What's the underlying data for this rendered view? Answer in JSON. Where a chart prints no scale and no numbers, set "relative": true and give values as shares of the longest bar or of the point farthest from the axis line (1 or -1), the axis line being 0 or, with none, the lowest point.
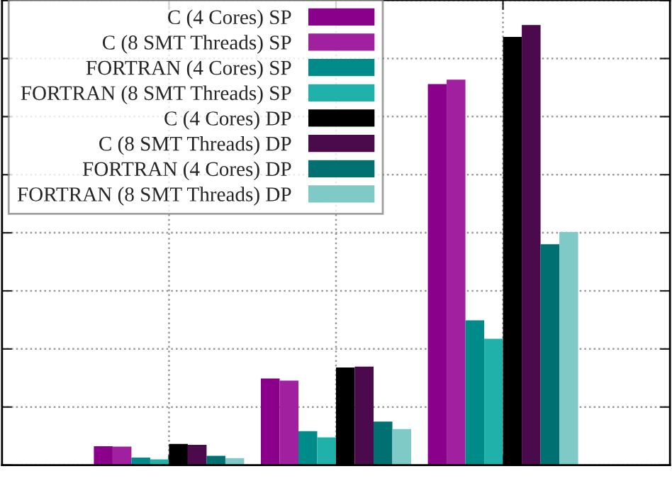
{
  "chart_data": {
    "type": "bar",
    "relative": true,
    "categories": [
      null,
      null,
      null
    ],
    "grid": true,
    "legend": "top left",
    "series": [
      {
        "name": "C (4 Cores) SP",
        "color": "#8b008b",
        "values": [
          0.043,
          0.197,
          0.866
        ]
      },
      {
        "name": "C (8 SMT Threads) SP",
        "color": "#a020a0",
        "values": [
          0.042,
          0.192,
          0.876
        ]
      },
      {
        "name": "FORTRAN (4 Cores) SP",
        "color": "#008b8b",
        "values": [
          0.017,
          0.077,
          0.329
        ]
      },
      {
        "name": "FORTRAN (8 SMT Threads) SP",
        "color": "#20b2aa",
        "values": [
          0.013,
          0.063,
          0.287
        ]
      },
      {
        "name": "C (4 Cores) DP",
        "color": "#000000",
        "values": [
          0.048,
          0.222,
          0.973
        ]
      },
      {
        "name": "C (8 SMT Threads) DP",
        "color": "#4b0a4b",
        "values": [
          0.046,
          0.224,
          1
        ]
      },
      {
        "name": "FORTRAN (4 Cores) DP",
        "color": "#007070",
        "values": [
          0.021,
          0.099,
          0.502
        ]
      },
      {
        "name": "FORTRAN (8 SMT Threads) DP",
        "color": "#7fc9c6",
        "values": [
          0.016,
          0.082,
          0.53
        ]
      }
    ]
  }
}
